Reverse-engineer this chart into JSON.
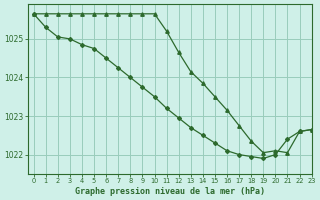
{
  "title": "Graphe pression niveau de la mer (hPa)",
  "background_color": "#cff0e8",
  "grid_color": "#99ccbb",
  "line_color": "#2d6a2d",
  "marker_color": "#2d6a2d",
  "xlim": [
    -0.5,
    23
  ],
  "ylim": [
    1021.5,
    1025.9
  ],
  "yticks": [
    1022,
    1023,
    1024,
    1025
  ],
  "xticks": [
    0,
    1,
    2,
    3,
    4,
    5,
    6,
    7,
    8,
    9,
    10,
    11,
    12,
    13,
    14,
    15,
    16,
    17,
    18,
    19,
    20,
    21,
    22,
    23
  ],
  "line1_x": [
    0,
    1,
    2,
    3,
    4,
    5,
    6,
    7,
    8,
    9,
    10,
    11,
    12,
    13,
    14,
    15,
    16,
    17,
    18,
    19,
    20,
    21,
    22,
    23
  ],
  "line1_y": [
    1025.65,
    1025.65,
    1025.65,
    1025.65,
    1025.65,
    1025.65,
    1025.65,
    1025.65,
    1025.65,
    1025.65,
    1025.65,
    1025.2,
    1024.65,
    1024.15,
    1023.85,
    1023.5,
    1023.15,
    1022.75,
    1022.35,
    1022.05,
    1022.1,
    1022.05,
    1022.6,
    1022.65
  ],
  "line2_x": [
    0,
    1,
    2,
    3,
    4,
    5,
    6,
    7,
    8,
    9,
    10,
    11,
    12,
    13,
    14,
    15,
    16,
    17,
    18,
    19,
    20,
    21,
    22,
    23
  ],
  "line2_y": [
    1025.65,
    1025.3,
    1025.05,
    1025.0,
    1024.85,
    1024.75,
    1024.5,
    1024.25,
    1024.0,
    1023.75,
    1023.5,
    1023.2,
    1022.95,
    1022.7,
    1022.5,
    1022.3,
    1022.1,
    1022.0,
    1021.95,
    1021.9,
    1022.0,
    1022.4,
    1022.6,
    1022.65
  ]
}
